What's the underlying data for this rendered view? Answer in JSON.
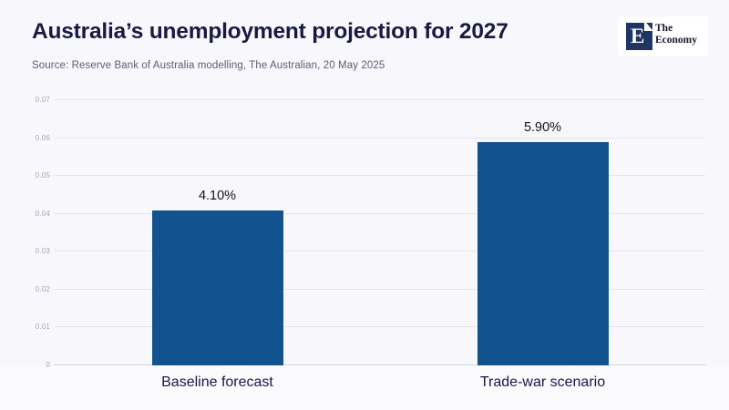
{
  "page": {
    "background_color": "#f8f8fc"
  },
  "header": {
    "title": "Australia’s unemployment projection for 2027",
    "source": "Source: Reserve Bank of Australia modelling, The Australian, 20 May 2025"
  },
  "logo": {
    "monogram": "E",
    "name_line1": "The",
    "name_line2": "Economy",
    "square_color": "#203662"
  },
  "chart_data": {
    "type": "bar",
    "title": "Australia’s unemployment projection for 2027",
    "categories": [
      "Baseline forecast",
      "Trade-war scenario"
    ],
    "values": [
      0.041,
      0.059
    ],
    "value_labels": [
      "4.10%",
      "5.90%"
    ],
    "xlabel": "",
    "ylabel": "",
    "ylim": [
      0,
      0.07
    ],
    "yticks": [
      0,
      0.01,
      0.02,
      0.03,
      0.04,
      0.05,
      0.06,
      0.07
    ],
    "ytick_labels": [
      "0",
      "0.01",
      "0.02",
      "0.03",
      "0.04",
      "0.05",
      "0.06",
      "0.07"
    ],
    "grid": true,
    "legend": false,
    "bar_color": "#11528f",
    "gridline_color": "#e3e3ed"
  }
}
